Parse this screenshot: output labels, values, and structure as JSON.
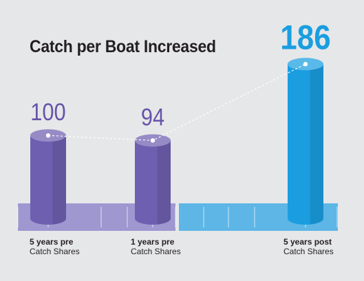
{
  "chart_data": {
    "type": "bar",
    "title": "Catch per Boat Increased",
    "categories": [
      {
        "line1": "5 years pre",
        "line2": "Catch Shares"
      },
      {
        "line1": "1 years pre",
        "line2": "Catch Shares"
      },
      {
        "line1": "5 years post",
        "line2": "Catch Shares"
      }
    ],
    "values": [
      100,
      94,
      186
    ],
    "data_labels": [
      "100",
      "94",
      "186"
    ],
    "colors": {
      "pre_bar": "#6f5fb0",
      "post_bar": "#1a9ee0",
      "pre_band": "#9f97d0",
      "post_band": "#5db6e6",
      "pre_label": "#6653a8",
      "post_label": "#1a9ee0",
      "background": "#e6e7e9"
    },
    "connector": "dashed-line",
    "grid": false
  }
}
